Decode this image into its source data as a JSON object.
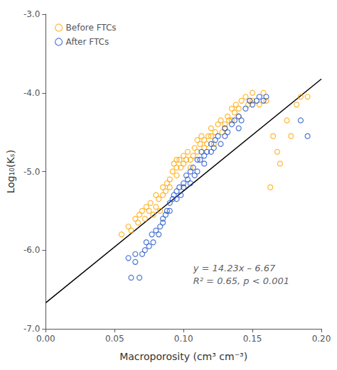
{
  "chart_data": {
    "type": "scatter",
    "xlabel": "Macroporosity (cm³ cm⁻³)",
    "ylabel": "Log₁₀(Kₛ)",
    "xlim": [
      0.0,
      0.2
    ],
    "ylim": [
      -7.0,
      -3.0
    ],
    "xticks": [
      {
        "value": 0.0,
        "label": "0.00"
      },
      0.05,
      {
        "value": 0.1,
        "label": "0.10"
      },
      0.15,
      {
        "value": 0.2,
        "label": "0.20"
      }
    ],
    "yticks": [
      {
        "value": -7.0,
        "label": "-7.0"
      },
      {
        "value": -6.0,
        "label": "-6.0"
      },
      {
        "value": -5.0,
        "label": "-5.0"
      },
      {
        "value": -4.0,
        "label": "-4.0"
      },
      {
        "value": -3.0,
        "label": "-3.0"
      }
    ],
    "grid": false,
    "legend": "upper left",
    "annotations": [
      {
        "text": "y = 14.23x – 6.67\nR² = 0.65, p < 0.001",
        "x": 0.107,
        "y": -6.15
      }
    ],
    "series": [
      {
        "name": "Before FTCs",
        "type": "scatter",
        "marker": "circle",
        "color": "#FFA500",
        "x": [
          0.055,
          0.06,
          0.062,
          0.065,
          0.067,
          0.068,
          0.07,
          0.072,
          0.073,
          0.075,
          0.076,
          0.078,
          0.08,
          0.08,
          0.082,
          0.083,
          0.085,
          0.085,
          0.087,
          0.088,
          0.09,
          0.09,
          0.092,
          0.093,
          0.095,
          0.095,
          0.095,
          0.097,
          0.098,
          0.1,
          0.1,
          0.102,
          0.103,
          0.105,
          0.105,
          0.107,
          0.108,
          0.11,
          0.11,
          0.112,
          0.113,
          0.115,
          0.115,
          0.117,
          0.118,
          0.12,
          0.12,
          0.122,
          0.123,
          0.125,
          0.127,
          0.128,
          0.13,
          0.13,
          0.132,
          0.133,
          0.135,
          0.135,
          0.137,
          0.138,
          0.14,
          0.14,
          0.142,
          0.145,
          0.147,
          0.148,
          0.15,
          0.15,
          0.155,
          0.158,
          0.16,
          0.163,
          0.165,
          0.168,
          0.17,
          0.175,
          0.178,
          0.182,
          0.185,
          0.19
        ],
        "y": [
          -5.8,
          -5.7,
          -5.75,
          -5.6,
          -5.65,
          -5.55,
          -5.5,
          -5.6,
          -5.45,
          -5.5,
          -5.4,
          -5.55,
          -5.45,
          -5.3,
          -5.35,
          -5.5,
          -5.3,
          -5.2,
          -5.25,
          -5.15,
          -5.2,
          -5.1,
          -5.0,
          -4.9,
          -5.05,
          -4.95,
          -4.85,
          -4.85,
          -4.95,
          -4.8,
          -4.9,
          -4.85,
          -4.75,
          -4.85,
          -4.95,
          -4.8,
          -4.7,
          -4.75,
          -4.6,
          -4.65,
          -4.55,
          -4.7,
          -4.6,
          -4.65,
          -4.55,
          -4.55,
          -4.45,
          -4.65,
          -4.5,
          -4.4,
          -4.35,
          -4.5,
          -4.4,
          -4.45,
          -4.3,
          -4.35,
          -4.35,
          -4.2,
          -4.25,
          -4.15,
          -4.2,
          -4.3,
          -4.1,
          -4.05,
          -4.15,
          -4.1,
          -4.1,
          -4.0,
          -4.15,
          -4.0,
          -4.1,
          -5.2,
          -4.55,
          -4.75,
          -4.9,
          -4.35,
          -4.55,
          -4.15,
          -4.05,
          -4.05
        ]
      },
      {
        "name": "After FTCs",
        "type": "scatter",
        "marker": "circle",
        "color": "#2255CC",
        "x": [
          0.06,
          0.062,
          0.065,
          0.065,
          0.068,
          0.07,
          0.072,
          0.073,
          0.075,
          0.077,
          0.078,
          0.08,
          0.082,
          0.083,
          0.085,
          0.085,
          0.087,
          0.088,
          0.09,
          0.09,
          0.092,
          0.093,
          0.095,
          0.095,
          0.097,
          0.098,
          0.1,
          0.1,
          0.102,
          0.103,
          0.105,
          0.105,
          0.107,
          0.108,
          0.11,
          0.11,
          0.112,
          0.113,
          0.115,
          0.115,
          0.117,
          0.12,
          0.12,
          0.122,
          0.123,
          0.125,
          0.127,
          0.13,
          0.13,
          0.132,
          0.135,
          0.137,
          0.14,
          0.14,
          0.142,
          0.145,
          0.148,
          0.15,
          0.153,
          0.155,
          0.158,
          0.16,
          0.185,
          0.19
        ],
        "y": [
          -6.1,
          -6.35,
          -6.05,
          -6.15,
          -6.35,
          -6.05,
          -6.0,
          -5.9,
          -5.95,
          -5.8,
          -5.9,
          -5.75,
          -5.8,
          -5.7,
          -5.65,
          -5.6,
          -5.55,
          -5.5,
          -5.4,
          -5.5,
          -5.35,
          -5.3,
          -5.25,
          -5.35,
          -5.2,
          -5.3,
          -5.15,
          -5.2,
          -5.05,
          -5.1,
          -5.0,
          -5.15,
          -4.95,
          -5.05,
          -4.85,
          -5.0,
          -4.85,
          -4.75,
          -4.8,
          -4.9,
          -4.75,
          -4.75,
          -4.65,
          -4.7,
          -4.6,
          -4.55,
          -4.65,
          -4.55,
          -4.45,
          -4.5,
          -4.4,
          -4.35,
          -4.3,
          -4.45,
          -4.35,
          -4.2,
          -4.1,
          -4.15,
          -4.1,
          -4.05,
          -4.1,
          -4.05,
          -4.35,
          -4.55
        ]
      },
      {
        "type": "line",
        "line_style": "solid",
        "color": "#000000",
        "x": [
          0.0,
          0.2
        ],
        "y": [
          -6.67,
          -3.824
        ]
      }
    ]
  }
}
